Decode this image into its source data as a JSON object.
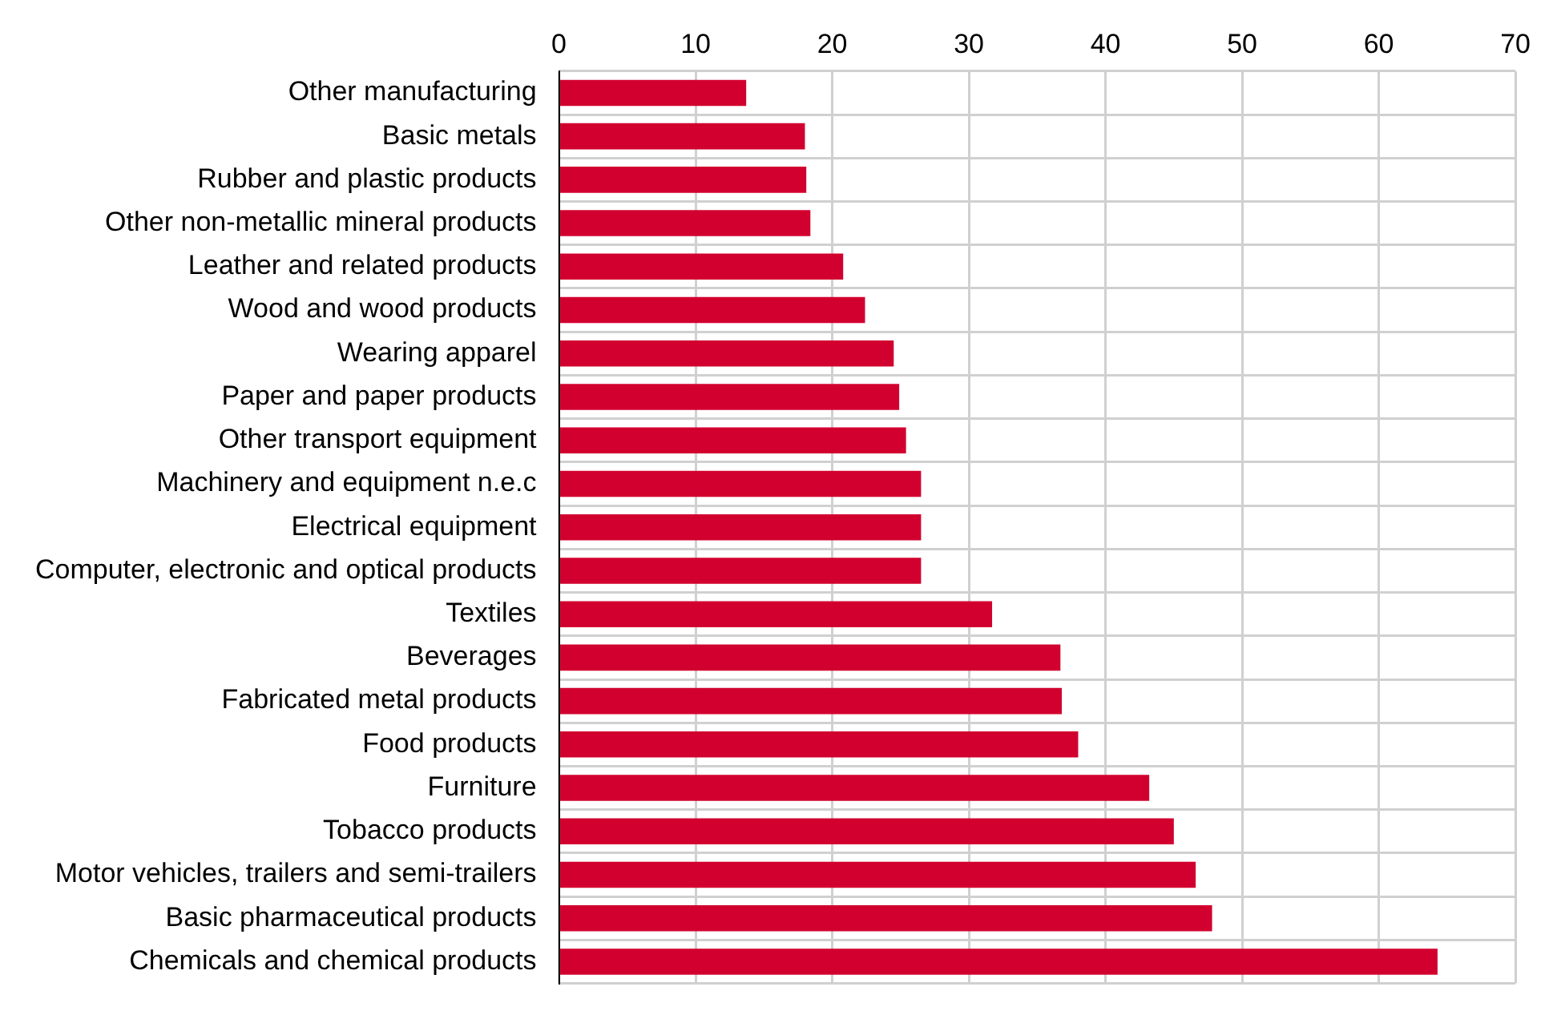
{
  "chart_data": {
    "type": "bar",
    "orientation": "horizontal",
    "categories": [
      "Other manufacturing",
      "Basic metals",
      "Rubber and plastic products",
      "Other non-metallic mineral products",
      "Leather and related products",
      "Wood and wood products",
      "Wearing apparel",
      "Paper and paper products",
      "Other transport equipment",
      "Machinery and equipment n.e.c",
      "Electrical equipment",
      "Computer, electronic and optical products",
      "Textiles",
      "Beverages",
      "Fabricated metal products",
      "Food products",
      "Furniture",
      "Tobacco products",
      "Motor vehicles, trailers and semi-trailers",
      "Basic pharmaceutical products",
      "Chemicals and chemical products"
    ],
    "values": [
      13.7,
      18.0,
      18.1,
      18.4,
      20.8,
      22.4,
      24.5,
      24.9,
      25.4,
      26.5,
      26.5,
      26.5,
      31.7,
      36.7,
      36.8,
      38.0,
      43.2,
      45.0,
      46.6,
      47.8,
      64.3
    ],
    "color": "#d2002f",
    "xlim": [
      0,
      70
    ],
    "xticks": [
      0,
      10,
      20,
      30,
      40,
      50,
      60,
      70
    ],
    "grid": true
  }
}
